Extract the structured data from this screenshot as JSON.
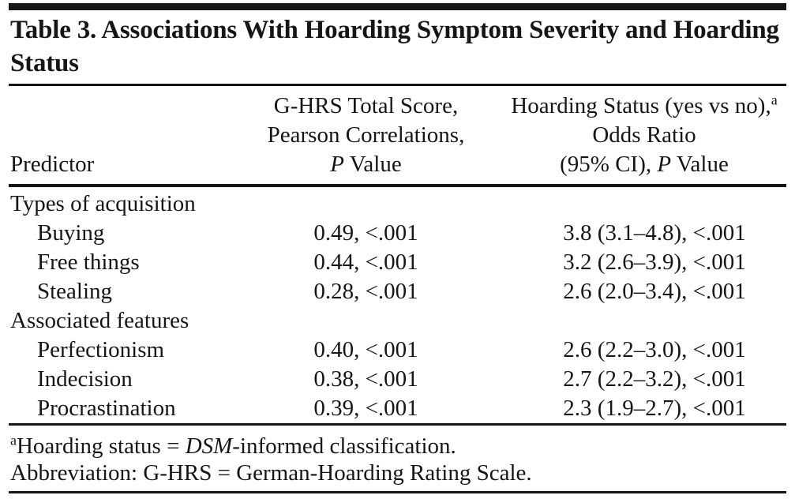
{
  "table": {
    "title": "Table 3. Associations With Hoarding Symptom Severity and Hoarding Status",
    "header": {
      "col1": "Predictor",
      "col2_line1": "G-HRS Total Score,",
      "col2_line2": "Pearson Correlations,",
      "col2_p": "P",
      "col2_value": " Value",
      "col3_line1": "Hoarding Status (yes vs no),",
      "col3_sup": "a",
      "col3_line2": "Odds Ratio",
      "col3_line3_pre": "(95% CI), ",
      "col3_p": "P",
      "col3_value": " Value"
    },
    "rows": [
      {
        "label": "Types of acquisition",
        "corr": "",
        "or": ""
      },
      {
        "label": "Buying",
        "corr": "0.49, <.001",
        "or": "3.8 (3.1–4.8), <.001"
      },
      {
        "label": "Free things",
        "corr": "0.44, <.001",
        "or": "3.2 (2.6–3.9), <.001"
      },
      {
        "label": "Stealing",
        "corr": "0.28, <.001",
        "or": "2.6 (2.0–3.4), <.001"
      },
      {
        "label": "Associated features",
        "corr": "",
        "or": ""
      },
      {
        "label": "Perfectionism",
        "corr": "0.40, <.001",
        "or": "2.6 (2.2–3.0), <.001"
      },
      {
        "label": "Indecision",
        "corr": "0.38, <.001",
        "or": "2.7 (2.2–3.2), <.001"
      },
      {
        "label": "Procrastination",
        "corr": "0.39, <.001",
        "or": "2.3 (1.9–2.7), <.001"
      }
    ],
    "footnotes": {
      "fn1_sup": "a",
      "fn1_pre": "Hoarding status = ",
      "fn1_italic": "DSM",
      "fn1_post": "-informed classification.",
      "fn2": "Abbreviation: G-HRS = German-Hoarding Rating Scale."
    }
  }
}
